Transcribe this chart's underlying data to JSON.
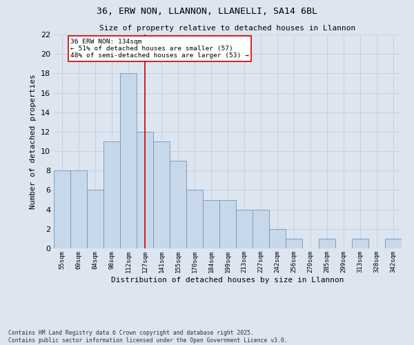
{
  "title1": "36, ERW NON, LLANNON, LLANELLI, SA14 6BL",
  "title2": "Size of property relative to detached houses in Llannon",
  "xlabel": "Distribution of detached houses by size in Llannon",
  "ylabel": "Number of detached properties",
  "categories": [
    "55sqm",
    "69sqm",
    "84sqm",
    "98sqm",
    "112sqm",
    "127sqm",
    "141sqm",
    "155sqm",
    "170sqm",
    "184sqm",
    "199sqm",
    "213sqm",
    "227sqm",
    "242sqm",
    "256sqm",
    "270sqm",
    "285sqm",
    "299sqm",
    "313sqm",
    "328sqm",
    "342sqm"
  ],
  "values": [
    8,
    8,
    6,
    11,
    18,
    12,
    11,
    9,
    6,
    5,
    5,
    4,
    4,
    2,
    1,
    0,
    1,
    0,
    1,
    0,
    1
  ],
  "bar_color": "#c8d8ea",
  "bar_edge_color": "#6699bb",
  "grid_color": "#c8d0dc",
  "background_color": "#dde5f0",
  "vline_index": 5,
  "vline_color": "#cc0000",
  "annotation_line1": "36 ERW NON: 134sqm",
  "annotation_line2": "← 51% of detached houses are smaller (57)",
  "annotation_line3": "48% of semi-detached houses are larger (53) →",
  "annotation_box_color": "#ffffff",
  "annotation_box_edge": "#cc0000",
  "footer": "Contains HM Land Registry data © Crown copyright and database right 2025.\nContains public sector information licensed under the Open Government Licence v3.0.",
  "ylim": [
    0,
    22
  ],
  "yticks": [
    0,
    2,
    4,
    6,
    8,
    10,
    12,
    14,
    16,
    18,
    20,
    22
  ]
}
